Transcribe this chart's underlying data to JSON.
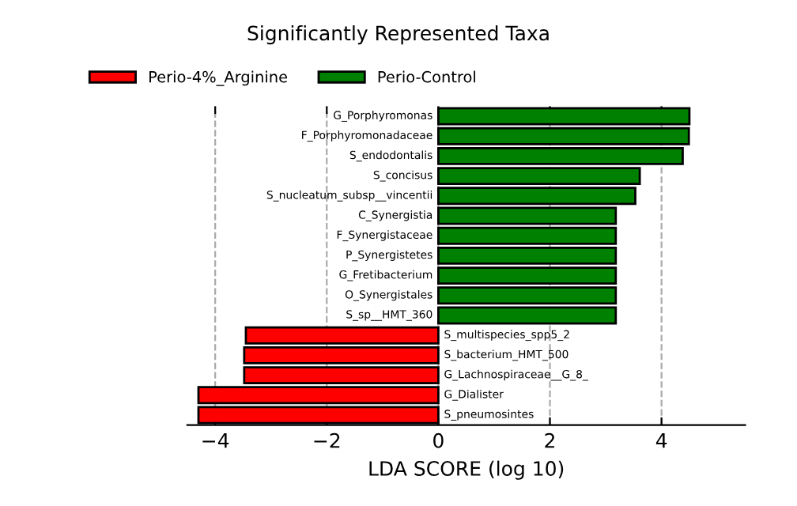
{
  "chart_data": {
    "type": "bar",
    "orientation": "horizontal",
    "title": "Significantly Represented Taxa",
    "xlabel": "LDA SCORE (log 10)",
    "categories": [
      "G_Porphyromonas",
      "F_Porphyromonadaceae",
      "S_endodontalis",
      "S_concisus",
      "S_nucleatum_subsp__vincentii",
      "C_Synergistia",
      "F_Synergistaceae",
      "P_Synergistetes",
      "G_Fretibacterium",
      "O_Synergistales",
      "S_sp__HMT_360",
      "S_multispecies_spp5_2",
      "S_bacterium_HMT_500",
      "G_Lachnospiraceae__G_8_",
      "G_Dialister",
      "S_pneumosintes"
    ],
    "series": [
      {
        "name": "Perio-4%_Arginine",
        "color": "#ff0000",
        "values": [
          null,
          null,
          null,
          null,
          null,
          null,
          null,
          null,
          null,
          null,
          null,
          -3.45,
          -3.48,
          -3.48,
          -4.3,
          -4.3
        ]
      },
      {
        "name": "Perio-Control",
        "color": "#008000",
        "values": [
          4.5,
          4.49,
          4.38,
          3.61,
          3.53,
          3.18,
          3.18,
          3.18,
          3.18,
          3.18,
          3.18,
          null,
          null,
          null,
          null,
          null
        ]
      }
    ],
    "xlim": [
      -4.5,
      5.5
    ],
    "xticks": [
      {
        "value": -4,
        "label": "−4"
      },
      {
        "value": -2,
        "label": "−2"
      },
      0,
      2,
      4
    ],
    "grid": "x",
    "legend": "top left"
  }
}
